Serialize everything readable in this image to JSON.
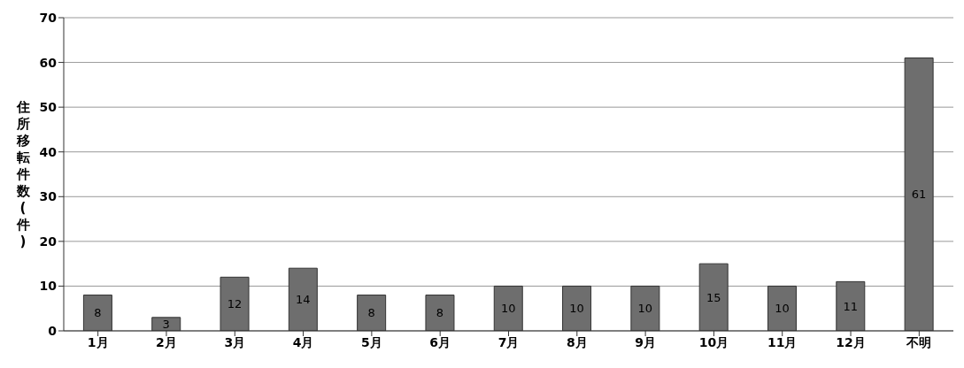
{
  "chart_data": {
    "type": "bar",
    "ylabel": "住所移転件数(件)",
    "categories": [
      "1月",
      "2月",
      "3月",
      "4月",
      "5月",
      "6月",
      "7月",
      "8月",
      "9月",
      "10月",
      "11月",
      "12月",
      "不明"
    ],
    "values": [
      8,
      3,
      12,
      14,
      8,
      8,
      10,
      10,
      10,
      15,
      10,
      11,
      61
    ],
    "color": "#6e6e6e",
    "ylim": [
      0,
      70
    ],
    "yticks": [
      0,
      10,
      20,
      30,
      40,
      50,
      60,
      70
    ],
    "grid": "y",
    "data_labels": true
  }
}
